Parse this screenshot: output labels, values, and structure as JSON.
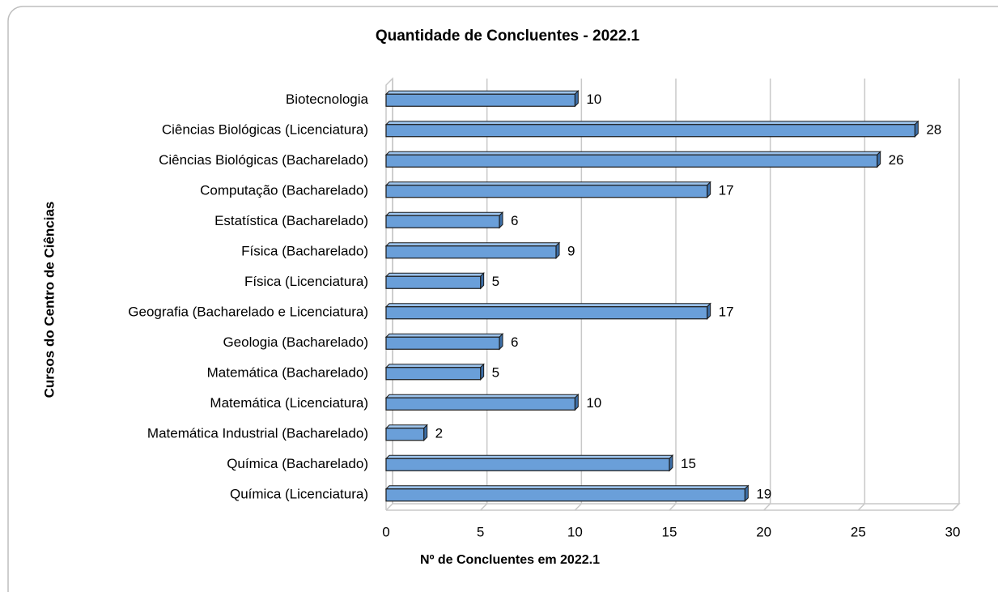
{
  "chart_data": {
    "type": "bar",
    "orientation": "horizontal",
    "title": "Quantidade de Concluentes - 2022.1",
    "x_label": "Nº de Concluentes em 2022.1",
    "y_label": "Cursos do Centro de Ciências",
    "categories": [
      "Biotecnologia",
      "Ciências Biológicas (Licenciatura)",
      "Ciências Biológicas (Bacharelado)",
      "Computação (Bacharelado)",
      "Estatística (Bacharelado)",
      "Física (Bacharelado)",
      "Física (Licenciatura)",
      "Geografia (Bacharelado e Licenciatura)",
      "Geologia (Bacharelado)",
      "Matemática (Bacharelado)",
      "Matemática (Licenciatura)",
      "Matemática Industrial (Bacharelado)",
      "Química (Bacharelado)",
      "Química (Licenciatura)"
    ],
    "values": [
      10,
      28,
      26,
      17,
      6,
      9,
      5,
      17,
      6,
      5,
      10,
      2,
      15,
      19
    ],
    "color": "#6a9fd9",
    "xlim": [
      0,
      30
    ],
    "xticks": [
      0,
      5,
      10,
      15,
      20,
      25,
      30
    ],
    "grid": true
  }
}
